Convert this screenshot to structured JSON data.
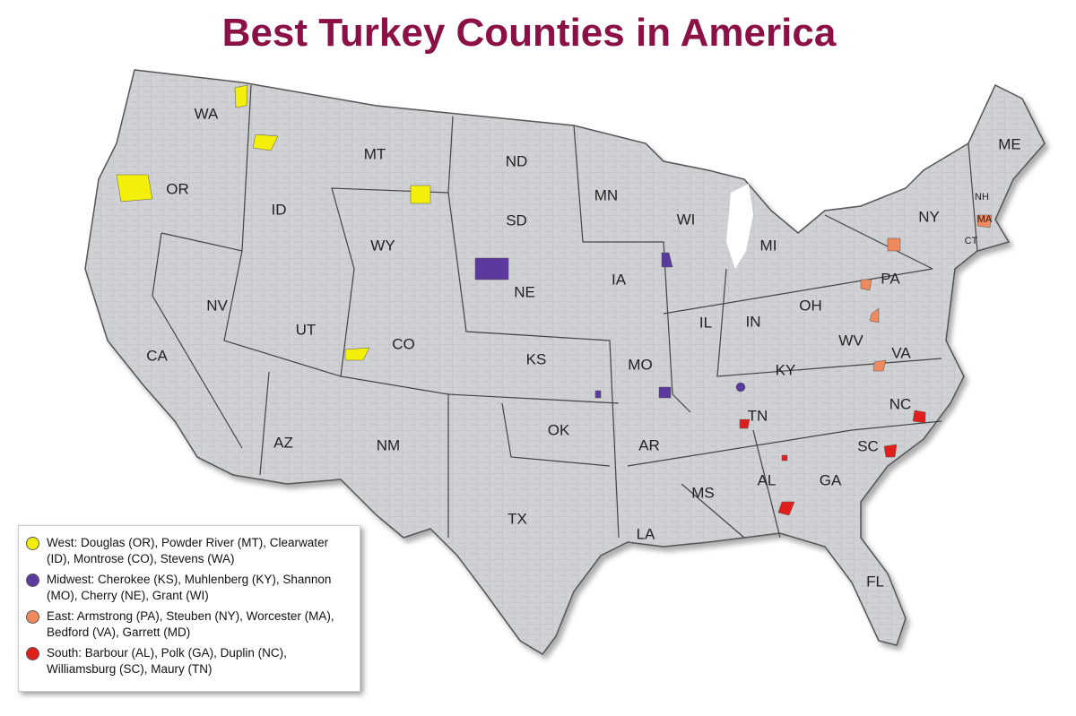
{
  "title": "Best Turkey Counties in America",
  "states": [
    "WA",
    "OR",
    "CA",
    "ID",
    "NV",
    "MT",
    "WY",
    "UT",
    "AZ",
    "CO",
    "NM",
    "ND",
    "SD",
    "NE",
    "KS",
    "OK",
    "TX",
    "MN",
    "IA",
    "MO",
    "AR",
    "LA",
    "WI",
    "IL",
    "MS",
    "MI",
    "IN",
    "KY",
    "TN",
    "AL",
    "OH",
    "GA",
    "FL",
    "WV",
    "VA",
    "NC",
    "SC",
    "PA",
    "NY",
    "ME",
    "NH",
    "MA",
    "CT"
  ],
  "legend": [
    {
      "text": "West: Douglas (OR), Powder River (MT), Clearwater (ID), Montrose (CO), Stevens (WA)",
      "color": "#f4ef0a"
    },
    {
      "text": "Midwest: Cherokee (KS), Muhlenberg (KY), Shannon (MO), Cherry (NE), Grant (WI)",
      "color": "#5a3a9c"
    },
    {
      "text": "East: Armstrong (PA), Steuben (NY), Worcester (MA), Bedford (VA), Garrett (MD)",
      "color": "#ee8a5e"
    },
    {
      "text": "South: Barbour (AL), Polk (GA), Duplin (NC), Williamsburg (SC), Maury (TN)",
      "color": "#e01f1c"
    }
  ]
}
